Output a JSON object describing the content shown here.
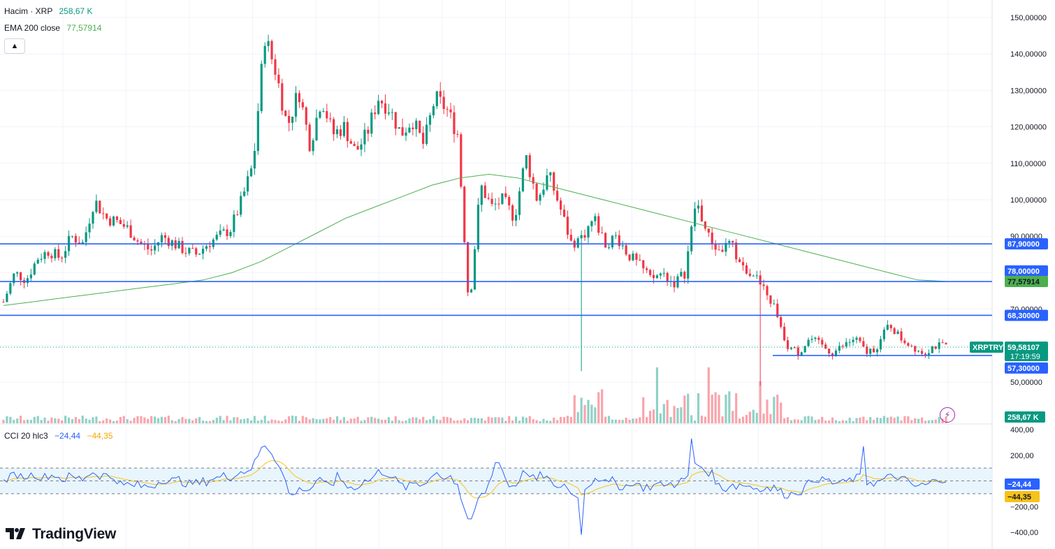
{
  "legend": {
    "volume_label": "Hacim · XRP",
    "volume_value": "258,67 K",
    "ema_label": "EMA 200 close",
    "ema_value": "77,57914",
    "cci_label": "CCI 20 hlc3",
    "cci_value": "−24,44",
    "cci_ma_value": "−44,35",
    "collapse_icon": "chevron-up-icon"
  },
  "brand": "TradingView",
  "colors": {
    "up": "#089981",
    "down": "#f23645",
    "level": "#2962ff",
    "ema": "#4caf50",
    "cci": "#2962ff",
    "cci_ma": "#f7c21a",
    "band": "#e3f2fd"
  },
  "chart_data": [
    {
      "type": "candlestick",
      "symbol": "XRPTRY",
      "price_axis_ticks": [
        "150,00000",
        "140,00000",
        "130,00000",
        "120,00000",
        "110,00000",
        "100,00000",
        "90,00000",
        "78,00000",
        "70,00000",
        "50,00000"
      ],
      "ylim": [
        47,
        152
      ],
      "last_price": "59,58107",
      "countdown": "17:19:59",
      "volume_last": "258,67 K",
      "ema_200_last": "77,57914",
      "horizontal_levels": [
        {
          "label": "87,90000",
          "value": 87.9
        },
        {
          "label": "77,57914",
          "value": 77.58
        },
        {
          "label": "68,30000",
          "value": 68.3
        },
        {
          "label": "57,30000",
          "value": 57.3
        }
      ],
      "price_path": [
        72,
        80,
        78,
        84,
        86,
        84,
        90,
        88,
        100,
        95,
        94,
        92,
        88,
        86,
        90,
        88,
        86,
        85,
        88,
        90,
        92,
        100,
        110,
        145,
        135,
        120,
        130,
        115,
        128,
        118,
        120,
        113,
        118,
        128,
        125,
        118,
        122,
        115,
        128,
        125,
        118,
        70,
        104,
        98,
        100,
        95,
        112,
        100,
        107,
        98,
        88,
        90,
        95,
        88,
        90,
        85,
        82,
        78,
        80,
        77,
        80,
        100,
        90,
        86,
        88,
        82,
        80,
        75,
        70,
        60,
        58,
        62,
        60,
        58,
        60,
        62,
        58,
        60,
        66,
        62,
        60,
        58,
        60,
        59.6
      ],
      "ema_path": [
        71,
        72,
        73,
        74,
        75,
        76,
        77,
        78,
        80,
        83,
        87,
        91,
        95,
        98,
        101,
        104,
        106,
        107,
        106,
        104,
        102,
        100,
        98,
        96,
        94,
        92,
        90,
        88,
        86,
        84,
        82,
        80,
        78,
        77.6
      ],
      "cci_ticks": [
        "400,00",
        "200,00",
        "0,00",
        "−200,00",
        "−400,00"
      ],
      "cci_levels": [
        100,
        0,
        -100
      ],
      "cci_last": "−24,44",
      "cci_ma_last": "−44,35"
    }
  ]
}
